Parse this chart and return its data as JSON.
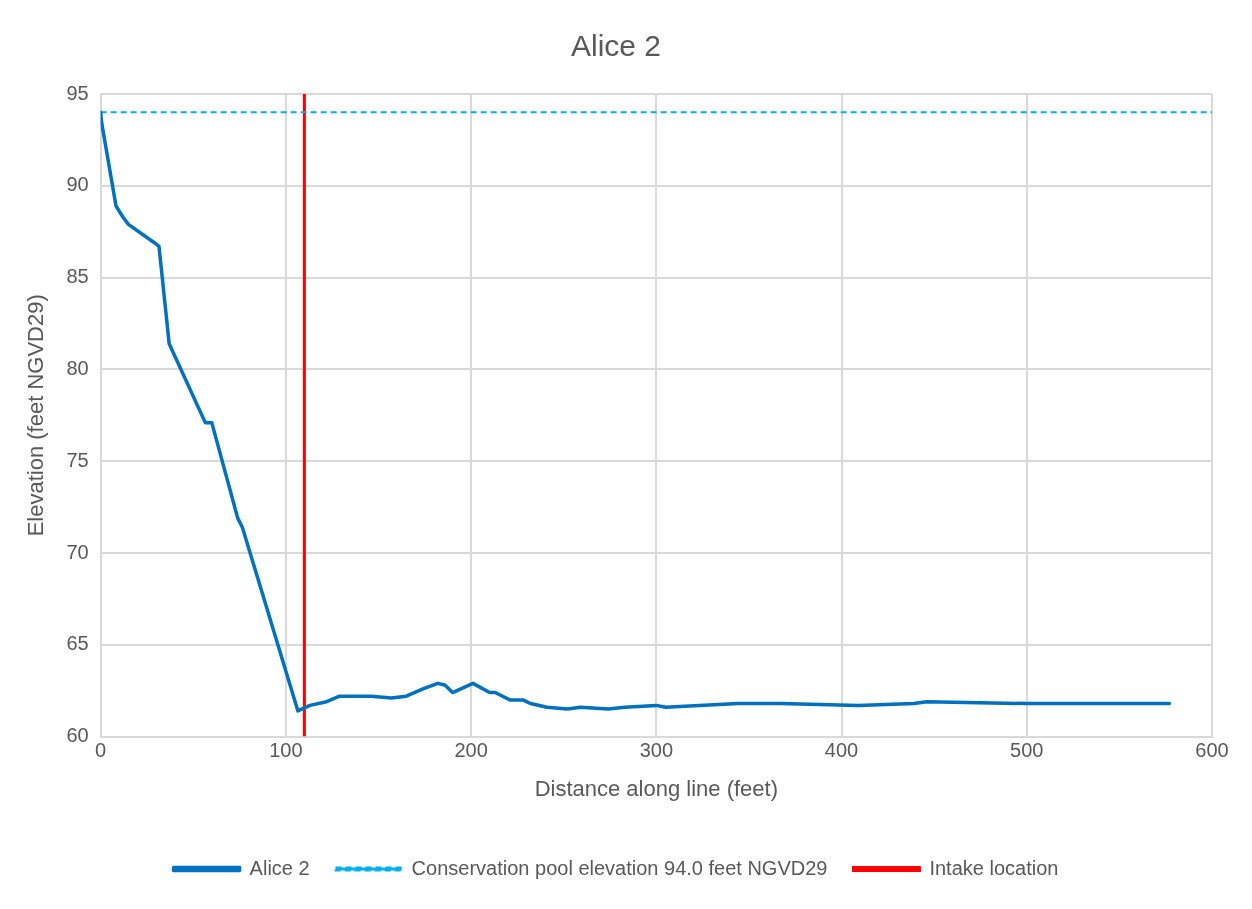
{
  "chart_data": {
    "type": "line",
    "title": "Alice 2",
    "xlabel": "Distance along line (feet)",
    "ylabel": "Elevation (feet NGVD29)",
    "xlim": [
      0,
      600
    ],
    "xticks": [
      0,
      100,
      200,
      300,
      400,
      500,
      600
    ],
    "ylim": [
      60,
      95
    ],
    "yticks": [
      60,
      65,
      70,
      75,
      80,
      85,
      90,
      95
    ],
    "grid": true,
    "legend": "bottom",
    "marker": "none",
    "line_style": "solid",
    "series": [
      {
        "name": "Alice 2",
        "color": "#0070c0",
        "x": [
          0,
          0.6,
          8.3,
          12,
          15,
          29,
          31.5,
          37,
          56.5,
          60,
          74,
          76.5,
          106.5,
          113,
          122,
          129,
          137,
          146,
          157,
          165,
          174,
          182,
          186,
          190,
          201,
          210,
          213,
          221,
          228,
          232,
          241,
          252,
          259,
          274,
          283,
          300,
          305,
          344,
          367,
          409,
          439,
          446,
          500,
          577
        ],
        "values": [
          94,
          93.4,
          88.9,
          88.3,
          87.9,
          86.9,
          86.7,
          81.4,
          77.1,
          77.1,
          71.9,
          71.4,
          61.4,
          61.7,
          61.9,
          62.2,
          62.2,
          62.2,
          62.1,
          62.2,
          62.6,
          62.9,
          62.8,
          62.4,
          62.9,
          62.4,
          62.4,
          62.0,
          62.0,
          61.8,
          61.6,
          61.5,
          61.6,
          61.5,
          61.6,
          61.7,
          61.6,
          61.8,
          61.8,
          61.7,
          61.8,
          61.9,
          61.8,
          61.8
        ]
      }
    ],
    "ref_lines": [
      {
        "axis": "y",
        "value": 94.0,
        "label": "Conservation pool elevation 94.0 feet NGVD29",
        "color": "#00b0f0",
        "line_style": "dashed"
      },
      {
        "axis": "x",
        "value": 110,
        "label": "Intake location",
        "color": "#ff0000",
        "line_style": "solid"
      }
    ]
  }
}
